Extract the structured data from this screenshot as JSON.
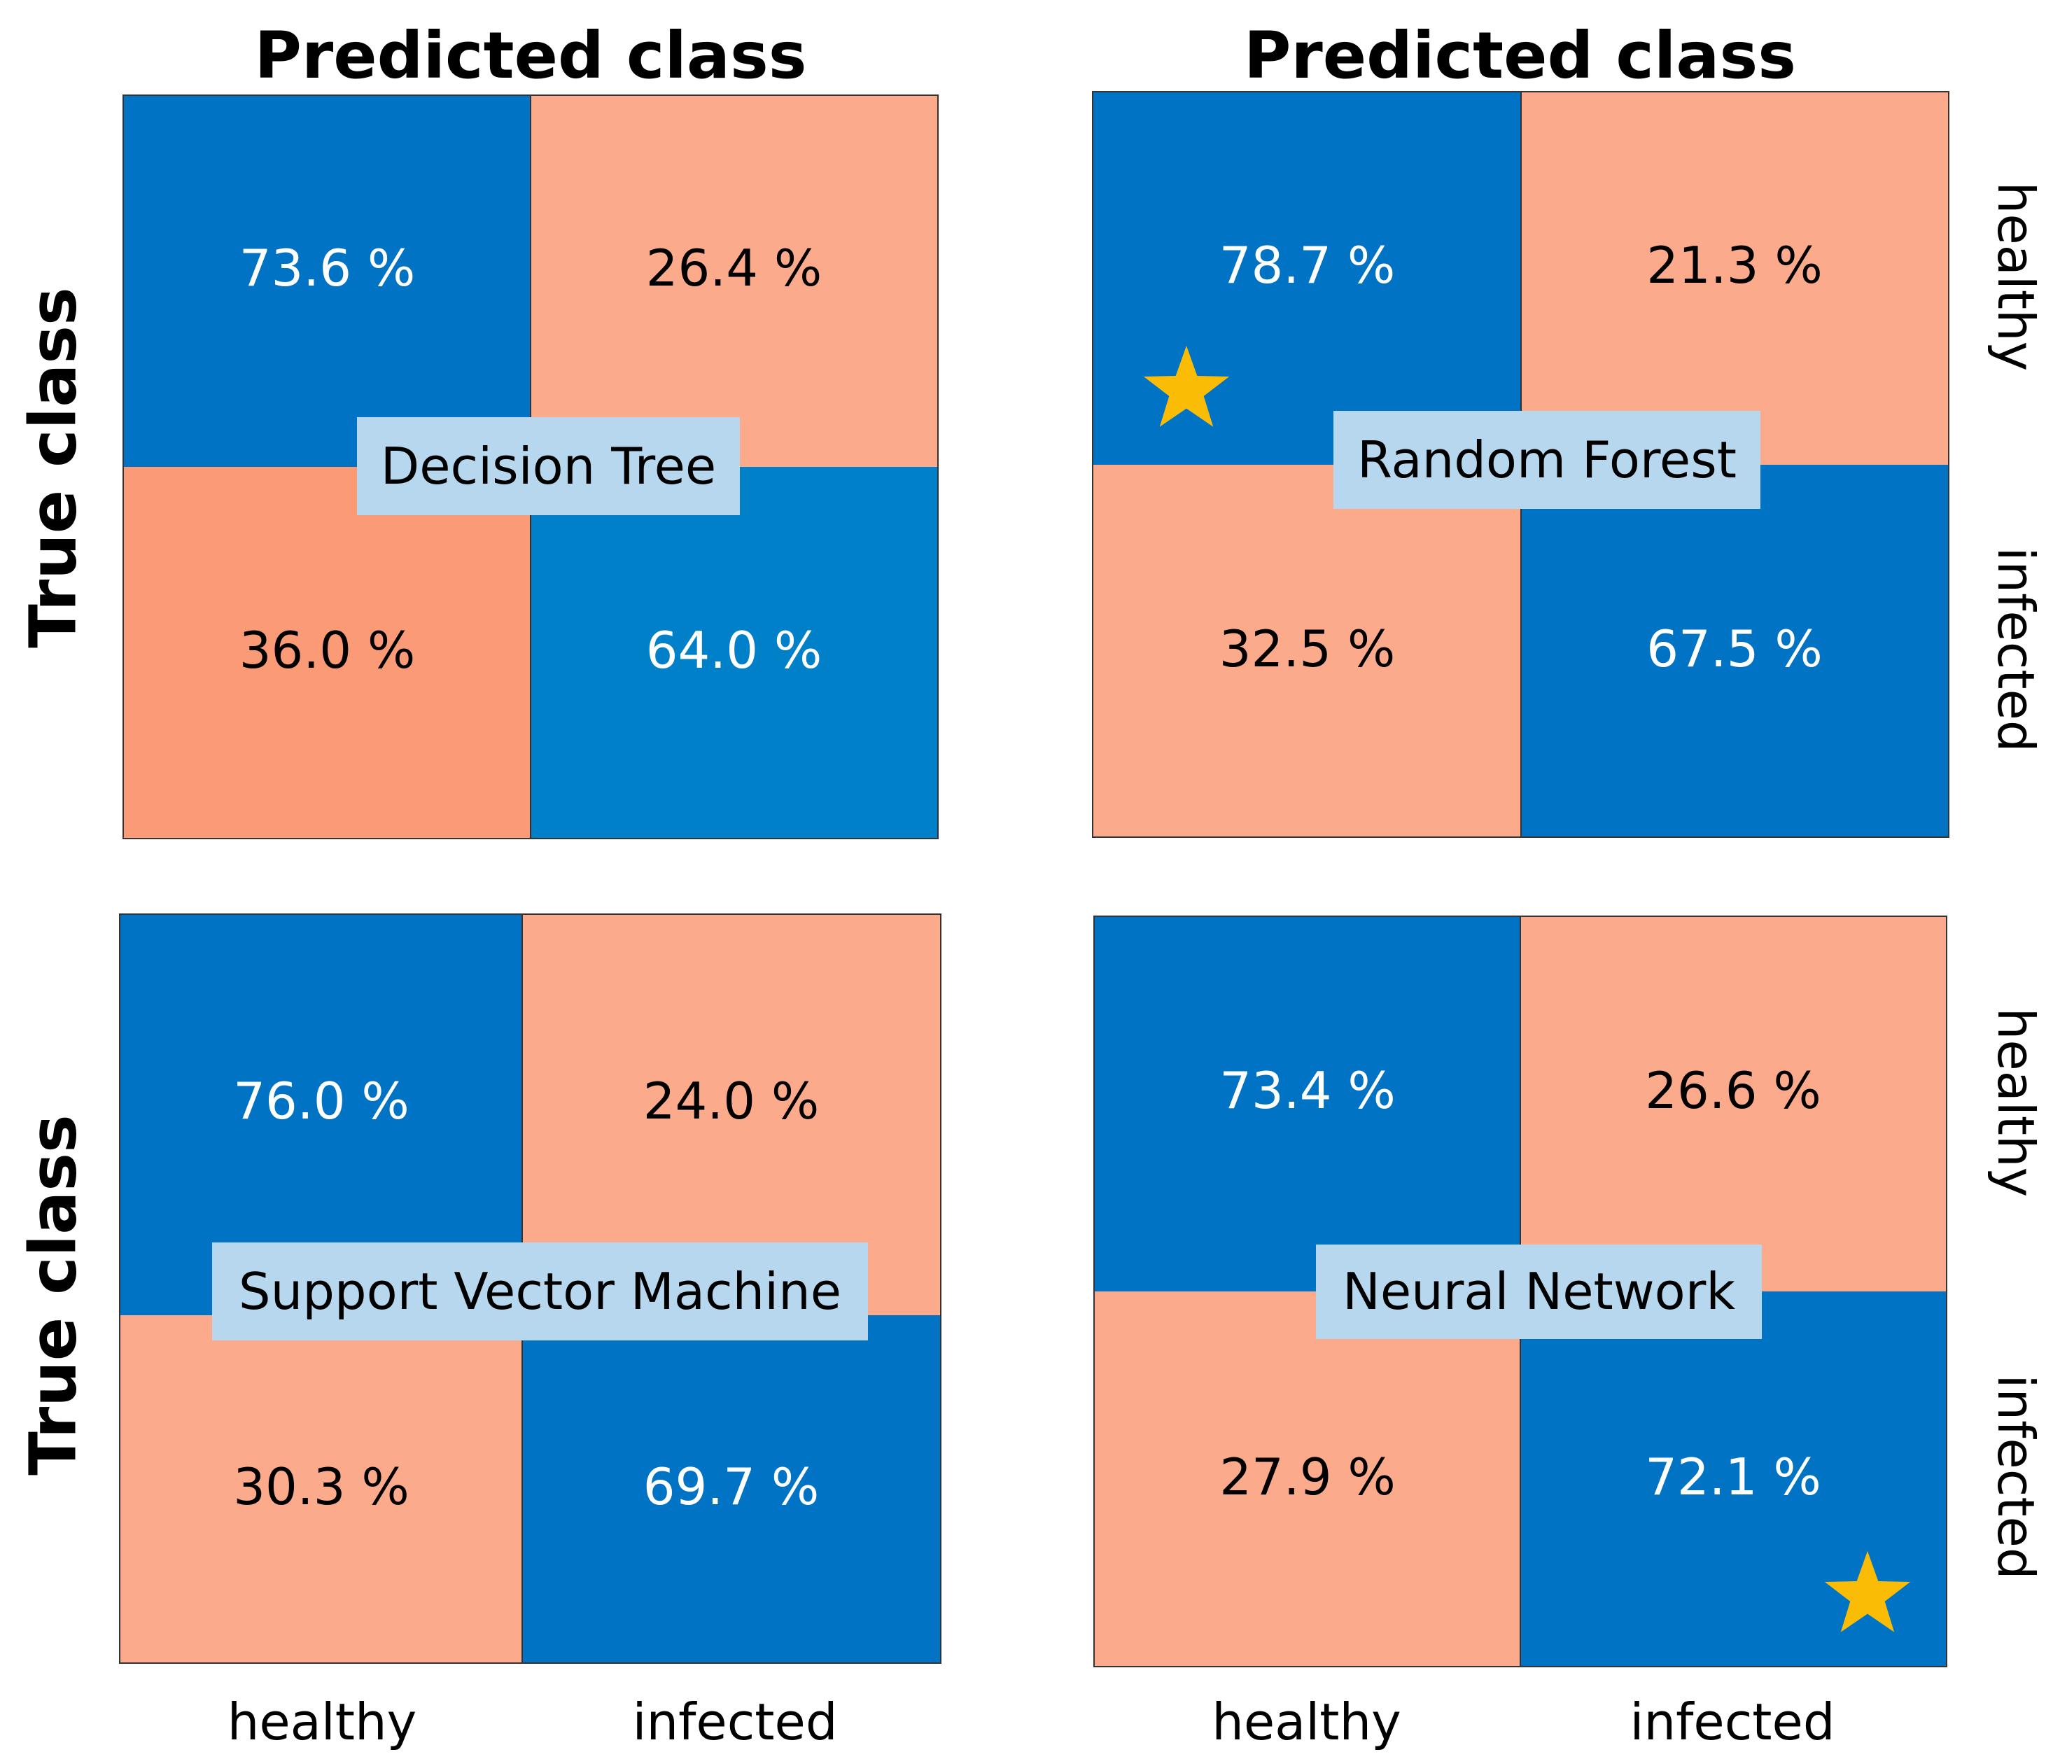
{
  "figure": {
    "column_axis_title": "Predicted class",
    "row_axis_title": "True class",
    "class_labels": [
      "healthy",
      "infected"
    ]
  },
  "colors": {
    "correct_blue": "#0073c4",
    "correct_blue_alt": "#0080c8",
    "error_salmon": "#fcaa8c",
    "error_salmon_dark": "#fa9a76",
    "label_box": "#b6d7ee",
    "star": "#fbbc05",
    "text_on_blue": "#ffffff",
    "text_on_salmon": "#000000"
  },
  "chart_data": [
    {
      "type": "heatmap",
      "model": "Decision Tree",
      "title": "",
      "xlabel": "Predicted class",
      "ylabel": "True class",
      "x_categories": [
        "healthy",
        "infected"
      ],
      "y_categories": [
        "healthy",
        "infected"
      ],
      "values": [
        [
          73.6,
          26.4
        ],
        [
          36.0,
          64.0
        ]
      ],
      "labels": [
        [
          "73.6 %",
          "26.4 %"
        ],
        [
          "36.0 %",
          "64.0 %"
        ]
      ],
      "best": false
    },
    {
      "type": "heatmap",
      "model": "Random Forest",
      "title": "",
      "xlabel": "Predicted class",
      "ylabel": "True class",
      "x_categories": [
        "healthy",
        "infected"
      ],
      "y_categories": [
        "healthy",
        "infected"
      ],
      "values": [
        [
          78.7,
          21.3
        ],
        [
          32.5,
          67.5
        ]
      ],
      "labels": [
        [
          "78.7 %",
          "21.3 %"
        ],
        [
          "32.5 %",
          "67.5 %"
        ]
      ],
      "best": true,
      "best_cell": "healthy-healthy"
    },
    {
      "type": "heatmap",
      "model": "Support Vector Machine",
      "title": "",
      "xlabel": "Predicted class",
      "ylabel": "True class",
      "x_categories": [
        "healthy",
        "infected"
      ],
      "y_categories": [
        "healthy",
        "infected"
      ],
      "values": [
        [
          76.0,
          24.0
        ],
        [
          30.3,
          69.7
        ]
      ],
      "labels": [
        [
          "76.0 %",
          "24.0 %"
        ],
        [
          "30.3 %",
          "69.7 %"
        ]
      ],
      "best": false
    },
    {
      "type": "heatmap",
      "model": "Neural Network",
      "title": "",
      "xlabel": "Predicted class",
      "ylabel": "True class",
      "x_categories": [
        "healthy",
        "infected"
      ],
      "y_categories": [
        "healthy",
        "infected"
      ],
      "values": [
        [
          73.4,
          26.6
        ],
        [
          27.9,
          72.1
        ]
      ],
      "labels": [
        [
          "73.4 %",
          "26.6 %"
        ],
        [
          "27.9 %",
          "72.1 %"
        ]
      ],
      "best": true,
      "best_cell": "infected-infected"
    }
  ]
}
